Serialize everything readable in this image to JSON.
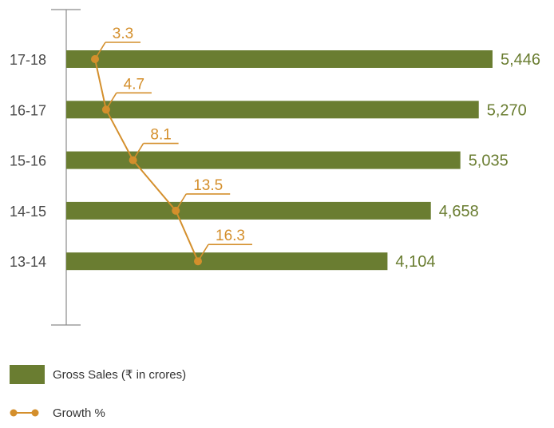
{
  "chart_data": {
    "type": "bar",
    "orientation": "horizontal",
    "categories": [
      "17-18",
      "16-17",
      "15-16",
      "14-15",
      "13-14"
    ],
    "series": [
      {
        "name": "Gross Sales (₹ in crores)",
        "type": "bar",
        "values": [
          5446,
          5270,
          5035,
          4658,
          4104
        ],
        "value_labels": [
          "5,446",
          "5,270",
          "5,035",
          "4,658",
          "4,104"
        ],
        "color": "#6a7d31"
      },
      {
        "name": "Growth %",
        "type": "line",
        "values": [
          3.3,
          4.7,
          8.1,
          13.5,
          16.3
        ],
        "value_labels": [
          "3.3",
          "4.7",
          "8.1",
          "13.5",
          "16.3"
        ],
        "color": "#d48f2c"
      }
    ],
    "legend": {
      "position": "bottom-left",
      "items": [
        "Gross Sales (₹ in crores)",
        "Growth %"
      ]
    },
    "colors": {
      "axis": "#8a8a8a",
      "category_text": "#4a4a4a",
      "bar_label_text": "#6a7d31",
      "growth_label_text": "#d48f2c",
      "legend_text": "#333333"
    },
    "grid": false
  }
}
